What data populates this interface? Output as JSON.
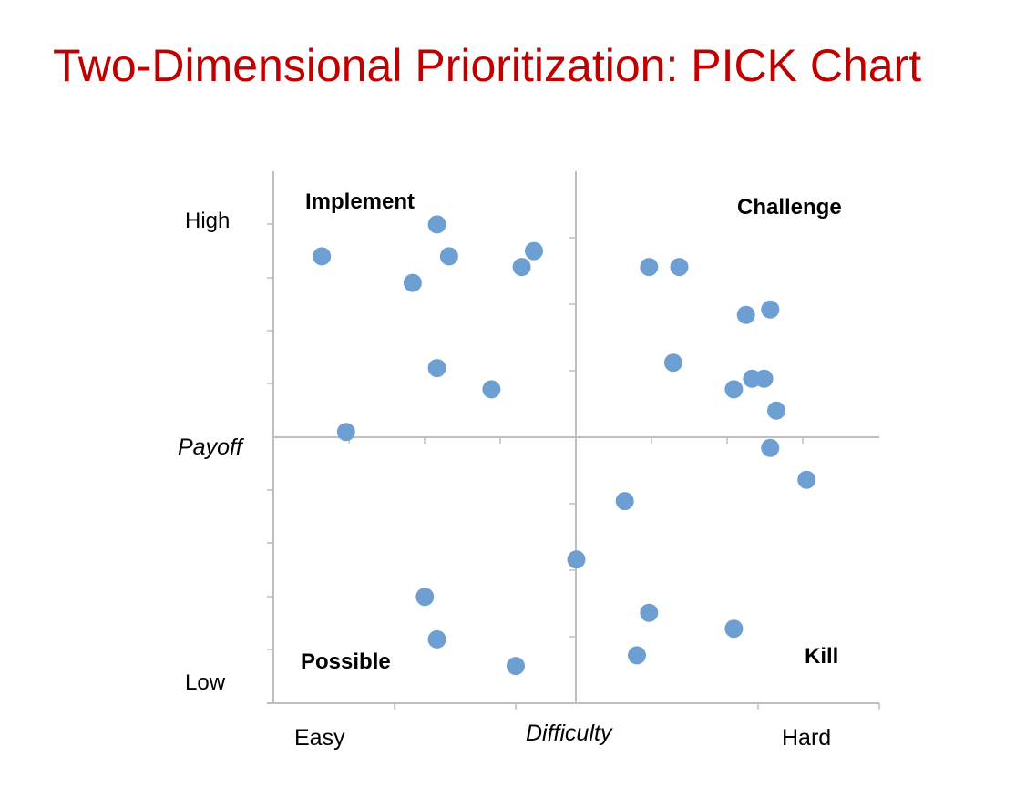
{
  "page": {
    "title": "Two-Dimensional Prioritization: PICK Chart"
  },
  "chart_data": {
    "type": "scatter",
    "title": "Two-Dimensional Prioritization: PICK Chart",
    "xlabel": "Difficulty",
    "ylabel": "Payoff",
    "x_tick_labels": {
      "low": "Easy",
      "high": "Hard"
    },
    "y_tick_labels": {
      "low": "Low",
      "high": "High"
    },
    "xlim": [
      0,
      10
    ],
    "ylim": [
      0,
      10
    ],
    "grid": false,
    "quadrants": {
      "top_left": "Implement",
      "top_right": "Challenge",
      "bottom_left": "Possible",
      "bottom_right": "Kill"
    },
    "point_color": "#6d9fd3",
    "points": [
      {
        "x": 0.8,
        "y": 8.4
      },
      {
        "x": 2.7,
        "y": 9.0
      },
      {
        "x": 2.9,
        "y": 8.4
      },
      {
        "x": 2.3,
        "y": 7.9
      },
      {
        "x": 4.1,
        "y": 8.2
      },
      {
        "x": 4.3,
        "y": 8.5
      },
      {
        "x": 2.7,
        "y": 6.3
      },
      {
        "x": 3.6,
        "y": 5.9
      },
      {
        "x": 1.2,
        "y": 5.1
      },
      {
        "x": 6.2,
        "y": 8.2
      },
      {
        "x": 6.7,
        "y": 8.2
      },
      {
        "x": 7.8,
        "y": 7.3
      },
      {
        "x": 8.2,
        "y": 7.4
      },
      {
        "x": 6.6,
        "y": 6.4
      },
      {
        "x": 7.6,
        "y": 5.9
      },
      {
        "x": 7.9,
        "y": 6.1
      },
      {
        "x": 8.1,
        "y": 6.1
      },
      {
        "x": 8.3,
        "y": 5.5
      },
      {
        "x": 8.2,
        "y": 4.8
      },
      {
        "x": 8.8,
        "y": 4.2
      },
      {
        "x": 5.8,
        "y": 3.8
      },
      {
        "x": 5.0,
        "y": 2.7
      },
      {
        "x": 2.5,
        "y": 2.0
      },
      {
        "x": 2.7,
        "y": 1.2
      },
      {
        "x": 4.0,
        "y": 0.7
      },
      {
        "x": 6.2,
        "y": 1.7
      },
      {
        "x": 7.6,
        "y": 1.4
      },
      {
        "x": 6.0,
        "y": 0.9
      }
    ]
  }
}
